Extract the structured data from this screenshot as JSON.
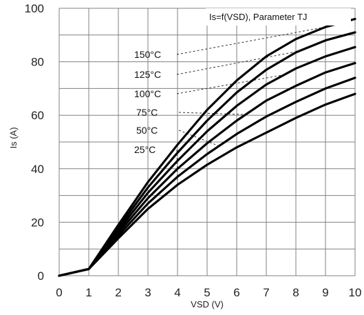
{
  "chart_data": {
    "type": "line",
    "title": "Is=f(VSD), Parameter TJ",
    "xlabel": "VSD (V)",
    "ylabel": "Is (A)",
    "xlim": [
      0,
      10
    ],
    "ylim": [
      0,
      100
    ],
    "x_ticks": [
      "0",
      "1",
      "2",
      "3",
      "4",
      "5",
      "6",
      "7",
      "8",
      "9",
      "10"
    ],
    "y_ticks": [
      "0",
      "20",
      "40",
      "60",
      "80",
      "100"
    ],
    "grid": true,
    "x": [
      0,
      1,
      2,
      3,
      4,
      5,
      6,
      7,
      8,
      9,
      10
    ],
    "series": [
      {
        "name": "150°C",
        "values": [
          0,
          2.5,
          19,
          35,
          49,
          62,
          73,
          82,
          88.5,
          93,
          96
        ]
      },
      {
        "name": "125°C",
        "values": [
          0,
          2.5,
          18,
          33,
          46,
          58,
          68.5,
          77,
          83.5,
          88,
          91
        ]
      },
      {
        "name": "100°C",
        "values": [
          0,
          2.5,
          17,
          31,
          43,
          54,
          63.5,
          71.5,
          77.5,
          82,
          85.5
        ]
      },
      {
        "name": "75°C",
        "values": [
          0,
          2.5,
          16,
          29,
          40,
          49.5,
          58,
          65.5,
          71,
          76,
          79.5
        ]
      },
      {
        "name": "50°C",
        "values": [
          0,
          2.5,
          15,
          27,
          37,
          45.5,
          53,
          59.5,
          65,
          70,
          74
        ]
      },
      {
        "name": "25°C",
        "values": [
          0,
          2.5,
          14,
          25,
          34,
          41.5,
          48,
          53.5,
          59,
          64,
          68
        ]
      }
    ],
    "line_color": "#000000",
    "grid_color": "#808080"
  }
}
